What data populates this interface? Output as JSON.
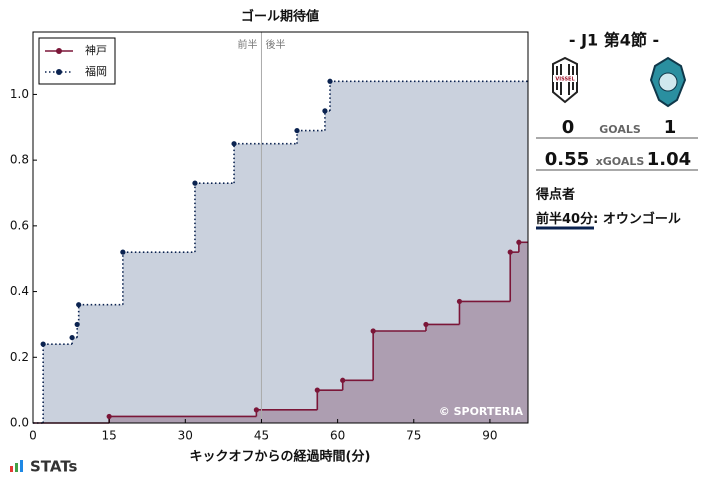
{
  "chart_data": {
    "type": "step",
    "title": "ゴール期待値",
    "x_label": "キックオフからの経過時間(分)",
    "xlim": [
      0,
      97.5
    ],
    "ylim": [
      0,
      1.19
    ],
    "xticks": [
      0,
      15,
      30,
      45,
      60,
      75,
      90
    ],
    "yticks": [
      {
        "value": 0,
        "label": "0.0"
      },
      0.2,
      0.4,
      0.6,
      0.8,
      {
        "value": 1,
        "label": "1.0"
      }
    ],
    "halftime": 45,
    "halftime_labels": [
      "前半",
      "後半"
    ],
    "watermark": "© SPORTERIA",
    "legend": "upper left",
    "series": [
      {
        "name": "神戸",
        "color": "#7b1638",
        "fill": "rgba(123,22,56,0.3)",
        "line": "solid",
        "x": [
          15,
          44,
          56,
          61,
          67,
          77.4,
          84,
          94,
          95.7
        ],
        "values": [
          0.02,
          0.04,
          0.1,
          0.13,
          0.28,
          0.3,
          0.37,
          0.52,
          0.55
        ]
      },
      {
        "name": "福岡",
        "color": "#0b2350",
        "fill": "rgba(60,85,130,0.27)",
        "line": "dotted",
        "x": [
          2,
          7.7,
          8.7,
          9,
          17.7,
          31.9,
          39.6,
          52,
          57.5,
          58.5
        ],
        "values": [
          0.24,
          0.26,
          0.3,
          0.36,
          0.52,
          0.73,
          0.85,
          0.89,
          0.95,
          1.04
        ]
      }
    ]
  },
  "panel": {
    "round": "- J1 第4節 -",
    "home_logo": "VISSEL",
    "home_goals": "0",
    "goals_label": "GOALS",
    "away_goals": "1",
    "home_xg": "0.55",
    "xg_label": "xGOALS",
    "away_xg": "1.04",
    "scorers_title": "得点者",
    "scorer": {
      "time": "前半40分",
      "text": ": オウンゴール"
    }
  },
  "brand": "STATs"
}
